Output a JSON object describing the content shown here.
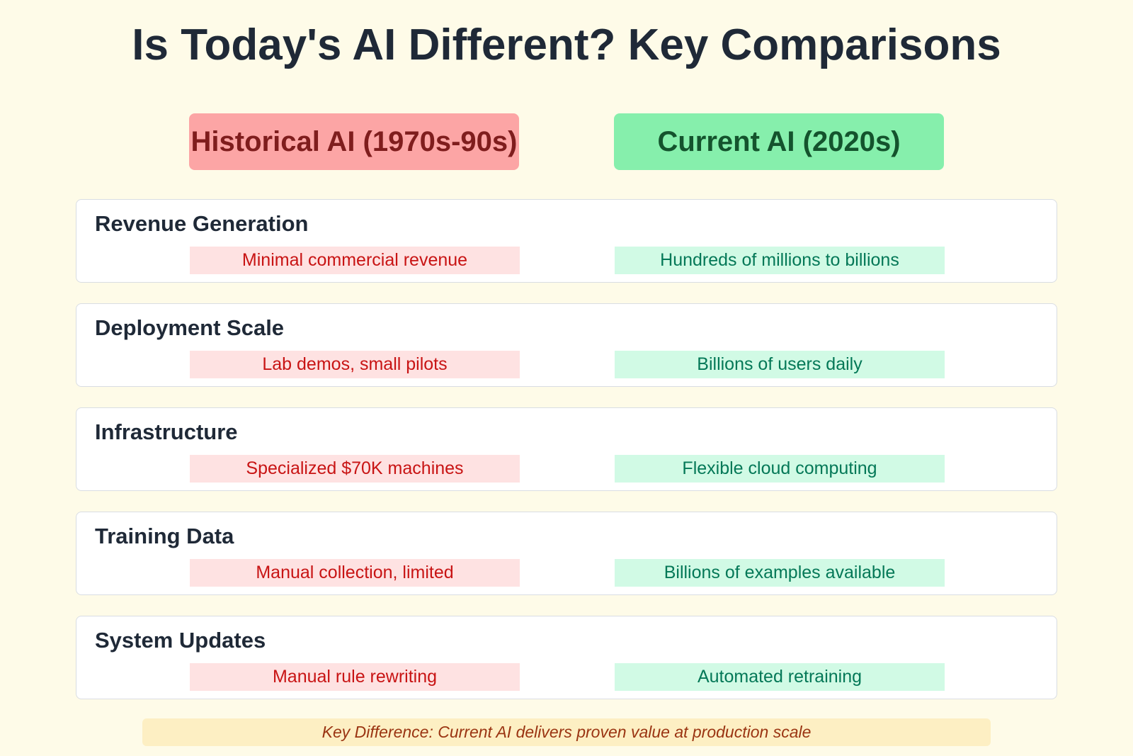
{
  "title": "Is Today's AI Different? Key Comparisons",
  "columns": {
    "historical": "Historical AI (1970s-90s)",
    "current": "Current AI (2020s)"
  },
  "rows": [
    {
      "label": "Revenue Generation",
      "historical": "Minimal commercial revenue",
      "current": "Hundreds of millions to billions"
    },
    {
      "label": "Deployment Scale",
      "historical": "Lab demos, small pilots",
      "current": "Billions of users daily"
    },
    {
      "label": "Infrastructure",
      "historical": "Specialized $70K machines",
      "current": "Flexible cloud computing"
    },
    {
      "label": "Training Data",
      "historical": "Manual collection, limited",
      "current": "Billions of examples available"
    },
    {
      "label": "System Updates",
      "historical": "Manual rule rewriting",
      "current": "Automated retraining"
    }
  ],
  "footer": "Key Difference: Current AI delivers proven value at production scale",
  "colors": {
    "historical_header": "#fca5a5",
    "current_header": "#86efac",
    "historical_text": "#c81414",
    "current_text": "#047857"
  }
}
